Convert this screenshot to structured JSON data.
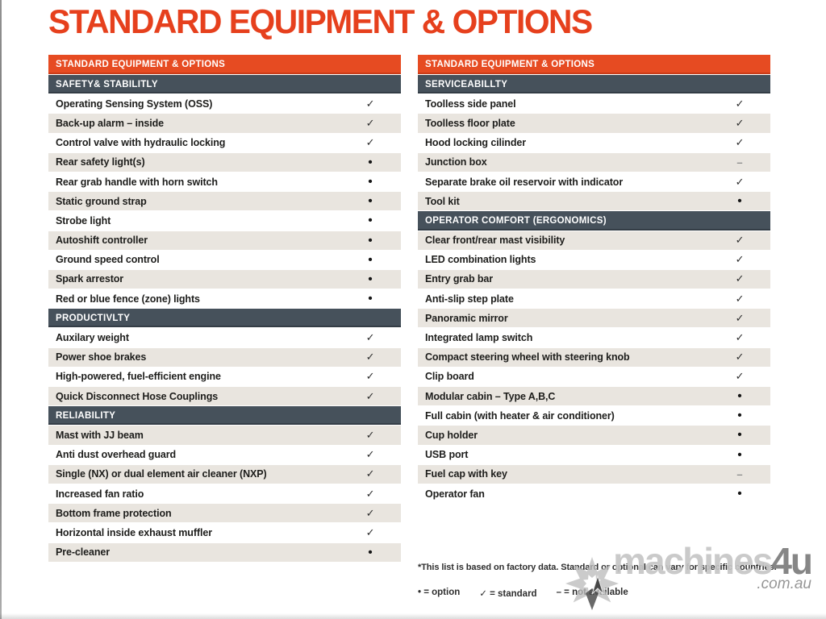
{
  "page_title": "STANDARD EQUIPMENT & OPTIONS",
  "colors": {
    "accent_orange": "#e64b22",
    "title_orange": "#e6401d",
    "section_slate": "#46515b",
    "row_shade": "#e9e5df",
    "dash_gray": "#8c8c8c"
  },
  "marks": {
    "check": "✓",
    "bullet": "•",
    "dash": "–"
  },
  "tables": [
    {
      "header": "STANDARD EQUIPMENT & OPTIONS",
      "rows": [
        {
          "type": "section",
          "label": "SAFETY& STABILITLY"
        },
        {
          "type": "item",
          "label": "Operating Sensing System (OSS)",
          "mark": "check"
        },
        {
          "type": "item",
          "label": "Back-up alarm – inside",
          "mark": "check"
        },
        {
          "type": "item",
          "label": "Control valve with hydraulic locking",
          "mark": "check"
        },
        {
          "type": "item",
          "label": "Rear safety light(s)",
          "mark": "bullet"
        },
        {
          "type": "item",
          "label": "Rear grab handle with horn switch",
          "mark": "bullet"
        },
        {
          "type": "item",
          "label": "Static ground strap",
          "mark": "bullet"
        },
        {
          "type": "item",
          "label": "Strobe light",
          "mark": "bullet"
        },
        {
          "type": "item",
          "label": "Autoshift controller",
          "mark": "bullet"
        },
        {
          "type": "item",
          "label": "Ground speed control",
          "mark": "bullet"
        },
        {
          "type": "item",
          "label": "Spark arrestor",
          "mark": "bullet"
        },
        {
          "type": "item",
          "label": "Red or blue fence (zone) lights",
          "mark": "bullet"
        },
        {
          "type": "section",
          "label": "PRODUCTIVLTY"
        },
        {
          "type": "item",
          "label": "Auxilary weight",
          "mark": "check"
        },
        {
          "type": "item",
          "label": "Power shoe brakes",
          "mark": "check"
        },
        {
          "type": "item",
          "label": "High-powered, fuel-efficient engine",
          "mark": "check"
        },
        {
          "type": "item",
          "label": "Quick Disconnect Hose Couplings",
          "mark": "check"
        },
        {
          "type": "section",
          "label": "RELIABILITY"
        },
        {
          "type": "item",
          "label": "Mast with JJ beam",
          "mark": "check"
        },
        {
          "type": "item",
          "label": "Anti dust overhead guard",
          "mark": "check"
        },
        {
          "type": "item",
          "label": "Single (NX) or dual element air cleaner (NXP)",
          "mark": "check"
        },
        {
          "type": "item",
          "label": "Increased fan ratio",
          "mark": "check"
        },
        {
          "type": "item",
          "label": "Bottom frame protection",
          "mark": "check"
        },
        {
          "type": "item",
          "label": "Horizontal inside exhaust muffler",
          "mark": "check"
        },
        {
          "type": "item",
          "label": "Pre-cleaner",
          "mark": "bullet"
        }
      ]
    },
    {
      "header": "STANDARD EQUIPMENT & OPTIONS",
      "rows": [
        {
          "type": "section",
          "label": "SERVICEABILLTY"
        },
        {
          "type": "item",
          "label": "Toolless side panel",
          "mark": "check"
        },
        {
          "type": "item",
          "label": "Toolless floor plate",
          "mark": "check"
        },
        {
          "type": "item",
          "label": "Hood locking cilinder",
          "mark": "check"
        },
        {
          "type": "item",
          "label": "Junction box",
          "mark": "dash"
        },
        {
          "type": "item",
          "label": "Separate brake oil reservoir with indicator",
          "mark": "check"
        },
        {
          "type": "item",
          "label": "Tool kit",
          "mark": "bullet"
        },
        {
          "type": "section",
          "label": "OPERATOR COMFORT (ERGONOMICS)"
        },
        {
          "type": "item",
          "label": "Clear front/rear mast visibility",
          "mark": "check"
        },
        {
          "type": "item",
          "label": "LED combination lights",
          "mark": "check"
        },
        {
          "type": "item",
          "label": "Entry grab bar",
          "mark": "check"
        },
        {
          "type": "item",
          "label": "Anti-slip step plate",
          "mark": "check"
        },
        {
          "type": "item",
          "label": "Panoramic mirror",
          "mark": "check"
        },
        {
          "type": "item",
          "label": "Integrated lamp switch",
          "mark": "check"
        },
        {
          "type": "item",
          "label": "Compact steering wheel with steering knob",
          "mark": "check"
        },
        {
          "type": "item",
          "label": "Clip board",
          "mark": "check"
        },
        {
          "type": "item",
          "label": "Modular cabin – Type A,B,C",
          "mark": "bullet"
        },
        {
          "type": "item",
          "label": "Full cabin (with heater & air conditioner)",
          "mark": "bullet"
        },
        {
          "type": "item",
          "label": "Cup holder",
          "mark": "bullet"
        },
        {
          "type": "item",
          "label": "USB port",
          "mark": "bullet"
        },
        {
          "type": "item",
          "label": "Fuel cap with key",
          "mark": "dash"
        },
        {
          "type": "item",
          "label": "Operator fan",
          "mark": "bullet"
        }
      ]
    }
  ],
  "footnote": "*This list is based on factory data. Standard or optional can vary for specific countries.",
  "legend_items": [
    {
      "symbol": "•",
      "label": "option"
    },
    {
      "symbol": "✓",
      "label": "standard"
    },
    {
      "symbol": "–",
      "label": "not available"
    }
  ],
  "watermark": {
    "brand": "machines",
    "suffix": "4u",
    "domain": ".com.au"
  }
}
